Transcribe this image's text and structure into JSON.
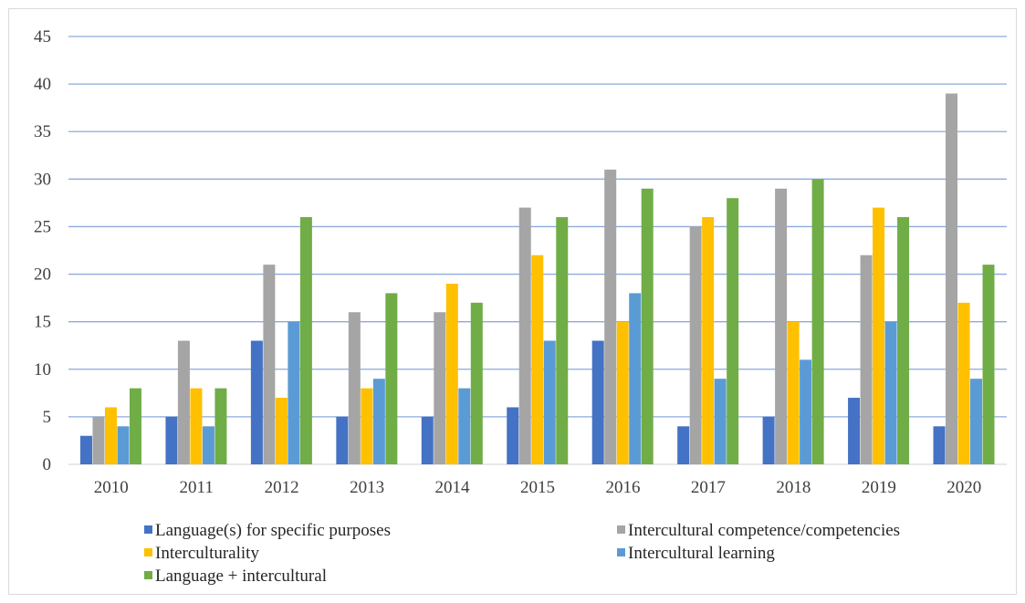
{
  "chart_data": {
    "type": "bar",
    "categories": [
      "2010",
      "2011",
      "2012",
      "2013",
      "2014",
      "2015",
      "2016",
      "2017",
      "2018",
      "2019",
      "2020"
    ],
    "series": [
      {
        "name": "Language(s) for specific purposes",
        "color": "#4472c4",
        "values": [
          3,
          5,
          13,
          5,
          5,
          6,
          13,
          4,
          5,
          7,
          4
        ]
      },
      {
        "name": "Intercultural competence/competencies",
        "color": "#a5a5a5",
        "values": [
          5,
          13,
          21,
          16,
          16,
          27,
          31,
          25,
          29,
          22,
          39
        ]
      },
      {
        "name": "Interculturality",
        "color": "#ffc000",
        "values": [
          6,
          8,
          7,
          8,
          19,
          22,
          15,
          26,
          15,
          27,
          17
        ]
      },
      {
        "name": "Intercultural learning",
        "color": "#5b9bd5",
        "values": [
          4,
          4,
          15,
          9,
          8,
          13,
          18,
          9,
          11,
          15,
          9
        ]
      },
      {
        "name": "Language + intercultural",
        "color": "#70ad47",
        "values": [
          8,
          8,
          26,
          18,
          17,
          26,
          29,
          28,
          30,
          26,
          21
        ]
      }
    ],
    "yticks": [
      "0",
      "5",
      "10",
      "15",
      "20",
      "25",
      "30",
      "35",
      "40",
      "45"
    ],
    "ylim": [
      0,
      45
    ],
    "grid": true,
    "gridColor": "#8eaadb",
    "legend_position": "bottom"
  }
}
